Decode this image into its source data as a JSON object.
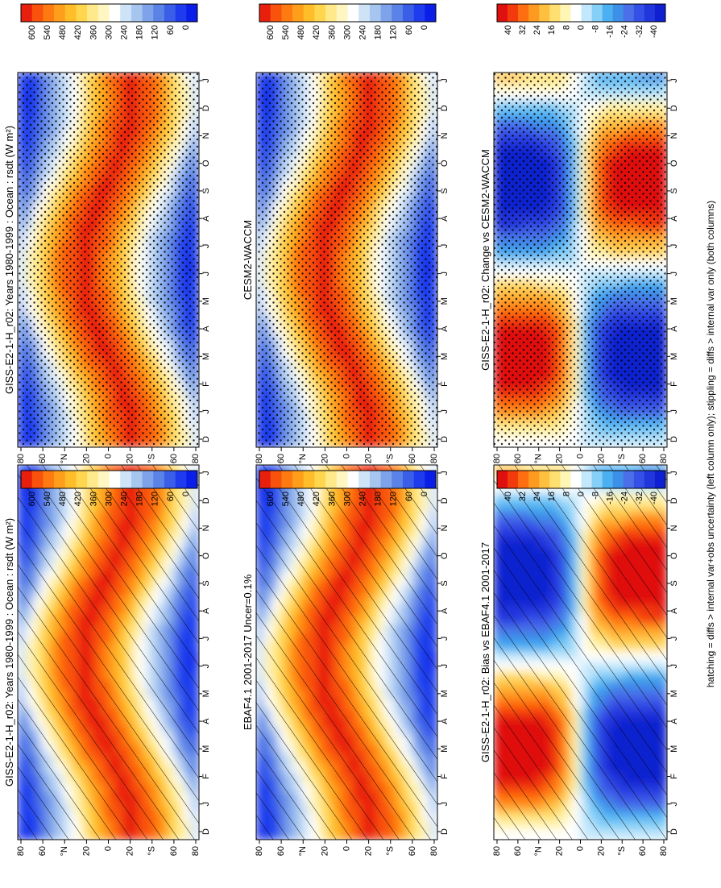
{
  "footer_note": "hatching = diffs > internal var+obs uncertainty (left column only); stippling = diffs > internal var only (both columns)",
  "colors": {
    "abs_scale": [
      "#0a1ee8",
      "#1e3ced",
      "#3a5ee8",
      "#5b82e6",
      "#7ea3ea",
      "#a6c6f0",
      "#cfe3f7",
      "#ffffff",
      "#fff6c2",
      "#ffe98a",
      "#ffd64e",
      "#ffbd2a",
      "#ff9e1a",
      "#ff7a10",
      "#f9520d",
      "#e81f0d"
    ],
    "diff_scale": [
      "#0e20cf",
      "#2236dd",
      "#3450e6",
      "#4a6fe8",
      "#3e8fe8",
      "#4bb0f2",
      "#86cff7",
      "#c4e8fb",
      "#ffffff",
      "#fff5b5",
      "#ffdf70",
      "#ffc040",
      "#ff9a20",
      "#ff6e10",
      "#f33a0c",
      "#e0100e"
    ]
  },
  "chart_data": [
    {
      "type": "heatmap",
      "panel": "top-left",
      "title": "GISS-E2-1-H_r02: Years 1980-1999 : Ocean : rsdt (W m²)",
      "x": [
        "D",
        "J",
        "F",
        "M",
        "A",
        "M",
        "J",
        "J",
        "A",
        "S",
        "O",
        "N",
        "D",
        "J"
      ],
      "y_ticks": [
        "80",
        "60",
        "°N",
        "20",
        "0",
        "20",
        "°S",
        "60",
        "80"
      ],
      "colorbar_ticks": [
        "600",
        "540",
        "480",
        "420",
        "360",
        "300",
        "240",
        "180",
        "120",
        "60",
        "0"
      ],
      "overlay": "hatching"
    },
    {
      "type": "heatmap",
      "panel": "top-right",
      "title": "GISS-E2-1-H_r02: Years 1980-1999 : Ocean : rsdt (W m²)",
      "x": [
        "D",
        "J",
        "F",
        "M",
        "A",
        "M",
        "J",
        "J",
        "A",
        "S",
        "O",
        "N",
        "D",
        "J"
      ],
      "y_ticks": [
        "80",
        "60",
        "°N",
        "20",
        "0",
        "20",
        "°S",
        "60",
        "80"
      ],
      "colorbar_ticks": [
        "600",
        "540",
        "480",
        "420",
        "360",
        "300",
        "240",
        "180",
        "120",
        "60",
        "0"
      ],
      "overlay": "stippling"
    },
    {
      "type": "heatmap",
      "panel": "middle-left",
      "title": "EBAF4.1 2001-2017 Uncer=0.1%",
      "x": [
        "D",
        "J",
        "F",
        "M",
        "A",
        "M",
        "J",
        "J",
        "A",
        "S",
        "O",
        "N",
        "D",
        "J"
      ],
      "y_ticks": [
        "80",
        "60",
        "°N",
        "20",
        "0",
        "20",
        "°S",
        "60",
        "80"
      ],
      "colorbar_ticks": [
        "600",
        "540",
        "480",
        "420",
        "360",
        "300",
        "240",
        "180",
        "120",
        "60",
        "0"
      ],
      "overlay": "hatching"
    },
    {
      "type": "heatmap",
      "panel": "middle-right",
      "title": "CESM2-WACCM",
      "x": [
        "D",
        "J",
        "F",
        "M",
        "A",
        "M",
        "J",
        "J",
        "A",
        "S",
        "O",
        "N",
        "D",
        "J"
      ],
      "y_ticks": [
        "80",
        "60",
        "°N",
        "20",
        "0",
        "20",
        "°S",
        "60",
        "80"
      ],
      "colorbar_ticks": [
        "600",
        "540",
        "480",
        "420",
        "360",
        "300",
        "240",
        "180",
        "120",
        "60",
        "0"
      ],
      "overlay": "stippling"
    },
    {
      "type": "heatmap",
      "panel": "bottom-left",
      "title": "GISS-E2-1-H_r02: Bias vs EBAF4.1 2001-2017",
      "x": [
        "D",
        "J",
        "F",
        "M",
        "A",
        "M",
        "J",
        "J",
        "A",
        "S",
        "O",
        "N",
        "D",
        "J"
      ],
      "y_ticks": [
        "80",
        "60",
        "°N",
        "20",
        "0",
        "20",
        "°S",
        "60",
        "80"
      ],
      "colorbar_ticks": [
        "40",
        "32",
        "24",
        "16",
        "8",
        "0",
        "-8",
        "-16",
        "-24",
        "-32",
        "-40"
      ],
      "overlay": "hatching"
    },
    {
      "type": "heatmap",
      "panel": "bottom-right",
      "title": "GISS-E2-1-H_r02: Change vs CESM2-WACCM",
      "x": [
        "D",
        "J",
        "F",
        "M",
        "A",
        "M",
        "J",
        "J",
        "A",
        "S",
        "O",
        "N",
        "D",
        "J"
      ],
      "y_ticks": [
        "80",
        "60",
        "°N",
        "20",
        "0",
        "20",
        "°S",
        "60",
        "80"
      ],
      "colorbar_ticks": [
        "40",
        "32",
        "24",
        "16",
        "8",
        "0",
        "-8",
        "-16",
        "-24",
        "-32",
        "-40"
      ],
      "overlay": "stippling"
    }
  ]
}
